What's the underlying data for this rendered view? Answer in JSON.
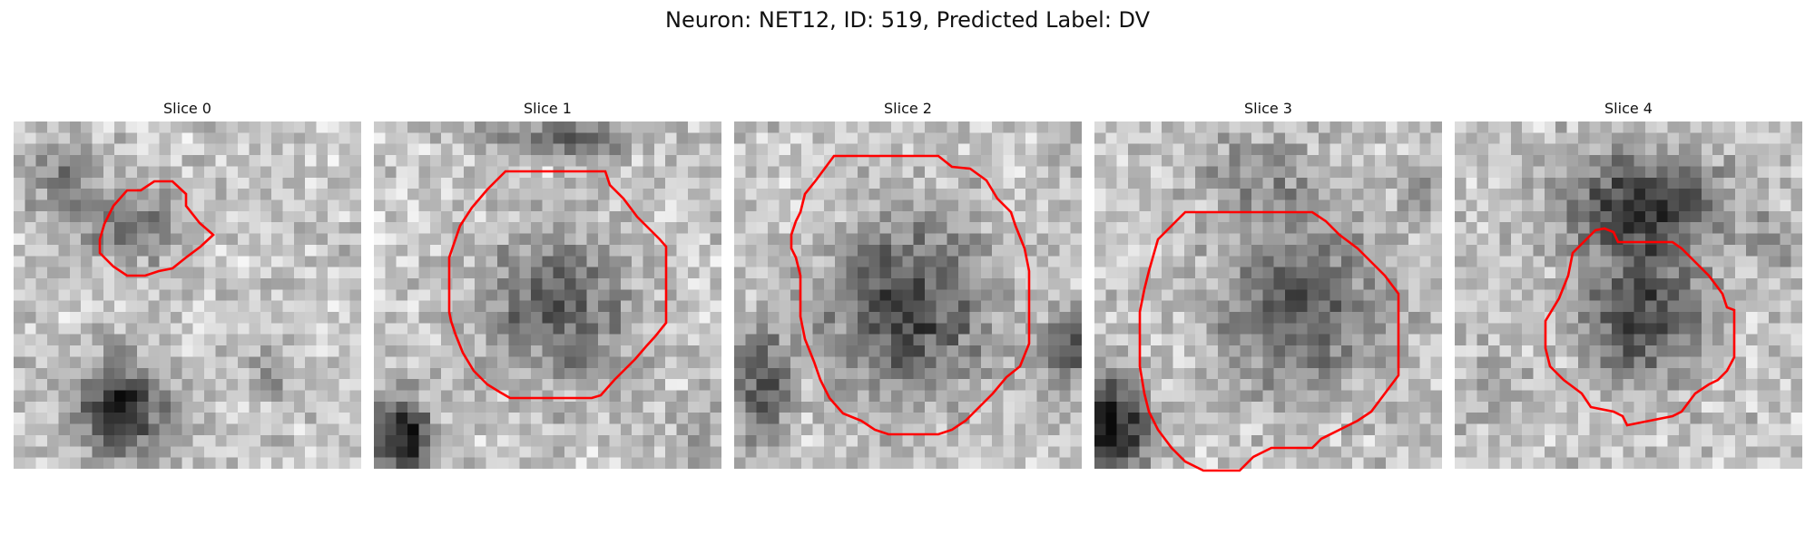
{
  "figure": {
    "title": "Neuron: NET12, ID: 519, Predicted Label: DV",
    "contour_color": "#ff0000"
  },
  "slices": [
    {
      "title": "Slice 0"
    },
    {
      "title": "Slice 1"
    },
    {
      "title": "Slice 2"
    },
    {
      "title": "Slice 3"
    },
    {
      "title": "Slice 4"
    }
  ]
}
